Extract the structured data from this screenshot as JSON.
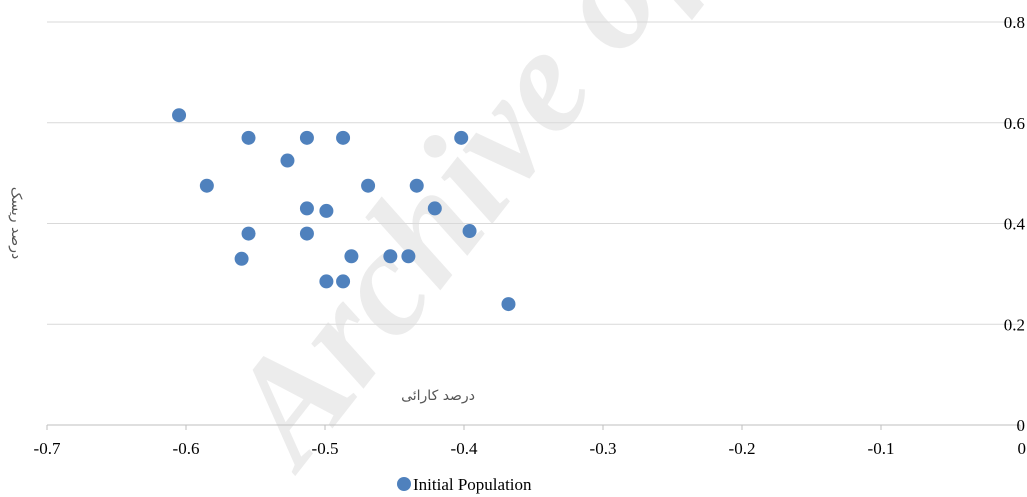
{
  "chart_data": {
    "type": "scatter",
    "xlabel": "درصد کارائی",
    "ylabel": "درصد ریسک",
    "xlim": [
      -0.7,
      0
    ],
    "ylim": [
      0,
      0.8
    ],
    "x_ticks": [
      "-0.7",
      "-0.6",
      "-0.5",
      "-0.4",
      "-0.3",
      "-0.2",
      "-0.1",
      "0"
    ],
    "y_ticks": [
      "0",
      "0.2",
      "0.4",
      "0.6",
      "0.8"
    ],
    "y_axis_side": "right",
    "grid": "horizontal",
    "legend_position": "bottom",
    "series": [
      {
        "name": "Initial Population",
        "color": "#4f81bd",
        "points": [
          {
            "x": -0.605,
            "y": 0.615
          },
          {
            "x": -0.585,
            "y": 0.475
          },
          {
            "x": -0.555,
            "y": 0.57
          },
          {
            "x": -0.555,
            "y": 0.38
          },
          {
            "x": -0.56,
            "y": 0.33
          },
          {
            "x": -0.527,
            "y": 0.525
          },
          {
            "x": -0.513,
            "y": 0.57
          },
          {
            "x": -0.513,
            "y": 0.43
          },
          {
            "x": -0.513,
            "y": 0.38
          },
          {
            "x": -0.499,
            "y": 0.425
          },
          {
            "x": -0.499,
            "y": 0.285
          },
          {
            "x": -0.487,
            "y": 0.57
          },
          {
            "x": -0.487,
            "y": 0.285
          },
          {
            "x": -0.481,
            "y": 0.335
          },
          {
            "x": -0.469,
            "y": 0.475
          },
          {
            "x": -0.453,
            "y": 0.335
          },
          {
            "x": -0.44,
            "y": 0.335
          },
          {
            "x": -0.434,
            "y": 0.475
          },
          {
            "x": -0.421,
            "y": 0.43
          },
          {
            "x": -0.402,
            "y": 0.57
          },
          {
            "x": -0.396,
            "y": 0.385
          },
          {
            "x": -0.368,
            "y": 0.24
          }
        ]
      }
    ]
  },
  "watermark": {
    "text": "Archive of SID",
    "color": "#e6e6e6"
  }
}
